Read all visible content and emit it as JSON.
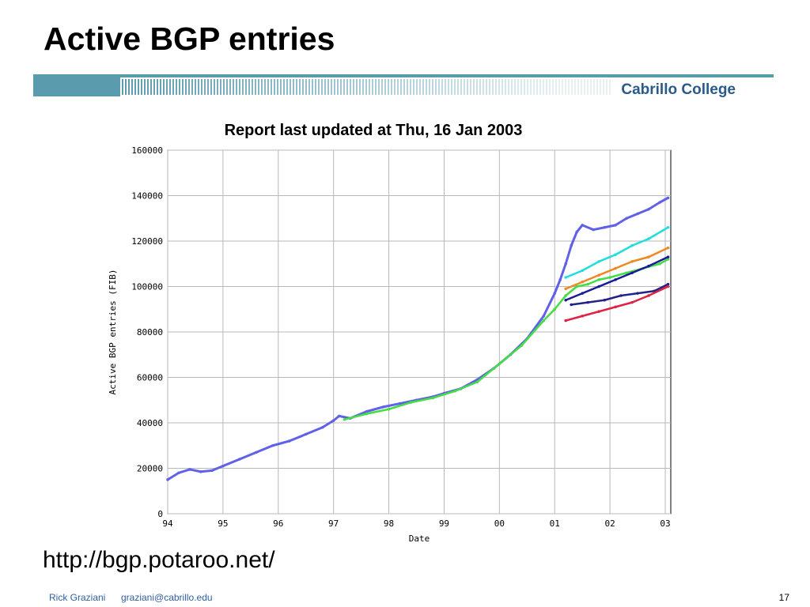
{
  "slide": {
    "title": "Active BGP entries",
    "brand": "Cabrillo College",
    "source_url": "http://bgp.potaroo.net/",
    "footer_author": "Rick Graziani",
    "footer_email": "graziani@cabrillo.edu",
    "page_number": "17"
  },
  "colors": {
    "accent": "#5b9bae",
    "brand_text": "#2a5a8c",
    "footer_text": "#3060a0",
    "series_main": "#6060e8"
  },
  "chart_data": {
    "type": "scatter",
    "title": "Report last updated at Thu, 16 Jan 2003",
    "xlabel": "Date",
    "ylabel": "Active BGP entries (FIB)",
    "x_ticks": [
      "94",
      "95",
      "96",
      "97",
      "98",
      "99",
      "00",
      "01",
      "02",
      "03"
    ],
    "y_ticks": [
      "0",
      "20000",
      "40000",
      "60000",
      "80000",
      "100000",
      "120000",
      "140000",
      "160000"
    ],
    "xlim": [
      1994.0,
      2003.1
    ],
    "ylim": [
      0,
      160000
    ],
    "grid": true,
    "series": [
      {
        "color": "#6060e8",
        "points": [
          [
            1994.0,
            15000
          ],
          [
            1994.2,
            18000
          ],
          [
            1994.4,
            19500
          ],
          [
            1994.6,
            18500
          ],
          [
            1994.8,
            19000
          ],
          [
            1995.0,
            21000
          ],
          [
            1995.3,
            24000
          ],
          [
            1995.6,
            27000
          ],
          [
            1995.9,
            30000
          ],
          [
            1996.2,
            32000
          ],
          [
            1996.5,
            35000
          ],
          [
            1996.8,
            38000
          ],
          [
            1997.0,
            41000
          ],
          [
            1997.1,
            43000
          ],
          [
            1997.3,
            42000
          ],
          [
            1997.6,
            45000
          ],
          [
            1997.9,
            47000
          ],
          [
            1998.2,
            48500
          ],
          [
            1998.5,
            50000
          ],
          [
            1998.8,
            51500
          ],
          [
            1999.0,
            53000
          ],
          [
            1999.3,
            55000
          ],
          [
            1999.6,
            59000
          ],
          [
            1999.9,
            64000
          ],
          [
            2000.2,
            70000
          ],
          [
            2000.5,
            77000
          ],
          [
            2000.8,
            87000
          ],
          [
            2001.0,
            97000
          ],
          [
            2001.1,
            103000
          ],
          [
            2001.2,
            110000
          ],
          [
            2001.3,
            118000
          ],
          [
            2001.4,
            124000
          ],
          [
            2001.5,
            127000
          ],
          [
            2001.7,
            125000
          ],
          [
            2001.9,
            126000
          ],
          [
            2002.1,
            127000
          ],
          [
            2002.3,
            130000
          ],
          [
            2002.5,
            132000
          ],
          [
            2002.7,
            134000
          ],
          [
            2002.9,
            137000
          ],
          [
            2003.05,
            139000
          ]
        ]
      },
      {
        "color": "#44dd44",
        "points": [
          [
            1997.2,
            41500
          ],
          [
            1997.6,
            44000
          ],
          [
            1998.0,
            46000
          ],
          [
            1998.4,
            49000
          ],
          [
            1998.8,
            51000
          ],
          [
            1999.2,
            54000
          ],
          [
            1999.6,
            58000
          ],
          [
            2000.0,
            66000
          ],
          [
            2000.4,
            74000
          ],
          [
            2000.8,
            85000
          ],
          [
            2001.0,
            90000
          ],
          [
            2001.2,
            96000
          ],
          [
            2001.4,
            100000
          ],
          [
            2001.6,
            101000
          ],
          [
            2001.8,
            103000
          ],
          [
            2002.0,
            104000
          ],
          [
            2002.3,
            106000
          ],
          [
            2002.6,
            108000
          ],
          [
            2002.9,
            110000
          ],
          [
            2003.05,
            112000
          ]
        ]
      },
      {
        "color": "#22dddd",
        "points": [
          [
            2001.2,
            104000
          ],
          [
            2001.5,
            107000
          ],
          [
            2001.8,
            111000
          ],
          [
            2002.1,
            114000
          ],
          [
            2002.4,
            118000
          ],
          [
            2002.7,
            121000
          ],
          [
            2003.05,
            126000
          ]
        ]
      },
      {
        "color": "#ee8822",
        "points": [
          [
            2001.2,
            99000
          ],
          [
            2001.5,
            102000
          ],
          [
            2001.8,
            105000
          ],
          [
            2002.1,
            108000
          ],
          [
            2002.4,
            111000
          ],
          [
            2002.7,
            113000
          ],
          [
            2003.05,
            117000
          ]
        ]
      },
      {
        "color": "#1a1a9a",
        "points": [
          [
            2001.2,
            94000
          ],
          [
            2001.5,
            97000
          ],
          [
            2001.8,
            100000
          ],
          [
            2002.1,
            103000
          ],
          [
            2002.4,
            106000
          ],
          [
            2002.7,
            109000
          ],
          [
            2003.05,
            113000
          ]
        ]
      },
      {
        "color": "#222288",
        "points": [
          [
            2001.3,
            92000
          ],
          [
            2001.6,
            93000
          ],
          [
            2001.9,
            94000
          ],
          [
            2002.2,
            96000
          ],
          [
            2002.5,
            97000
          ],
          [
            2002.8,
            98000
          ],
          [
            2003.05,
            101000
          ]
        ]
      },
      {
        "color": "#dd2244",
        "points": [
          [
            2001.2,
            85000
          ],
          [
            2001.5,
            87000
          ],
          [
            2001.8,
            89000
          ],
          [
            2002.1,
            91000
          ],
          [
            2002.4,
            93000
          ],
          [
            2002.7,
            96000
          ],
          [
            2003.05,
            100000
          ]
        ]
      }
    ]
  }
}
